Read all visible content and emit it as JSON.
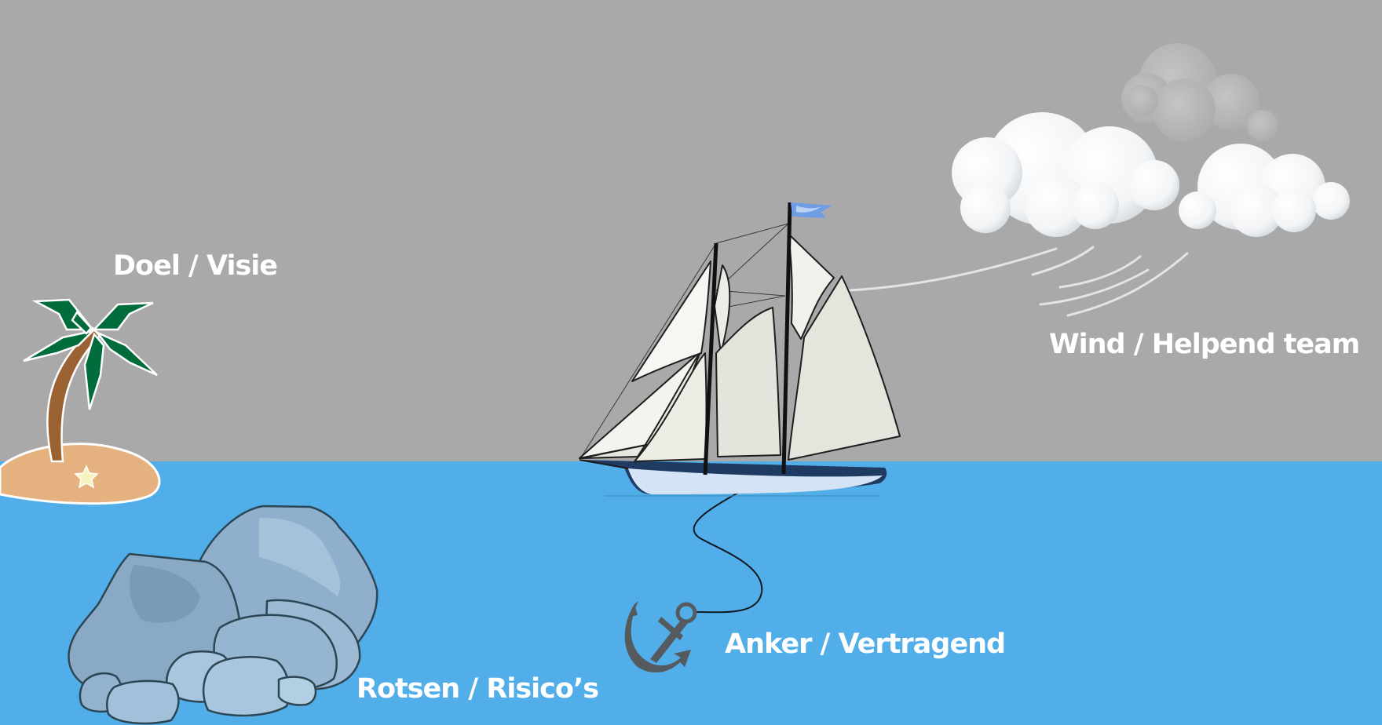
{
  "labels": {
    "goal": "Doel / Visie",
    "wind": "Wind / Helpend team",
    "anchor": "Anker / Vertragend",
    "rocks": "Rotsen / Risico’s"
  },
  "colors": {
    "sky": "#a9a9a9",
    "sea": "#51aee8",
    "label_text": "#ffffff",
    "sand": "#e5b17f",
    "palm_leaf": "#006b3b",
    "palm_trunk": "#9a6232",
    "rock": "#89a8c6",
    "anchor": "#555a5e",
    "hull": "#1f3b62",
    "flag": "#6f9de4"
  },
  "icons": [
    "palm-island-icon",
    "rocks-icon",
    "sailboat-icon",
    "anchor-icon",
    "clouds-icon"
  ]
}
